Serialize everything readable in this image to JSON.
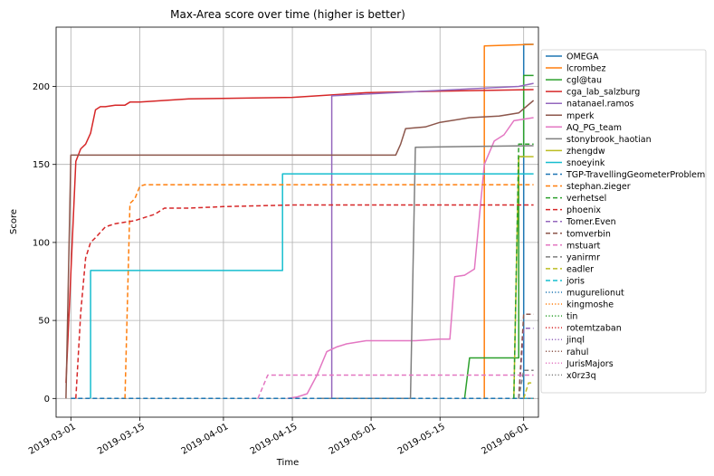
{
  "chart_data": {
    "type": "line",
    "title": "Max-Area score over time (higher is better)",
    "xlabel": "Time",
    "ylabel": "Score",
    "x_ticks": [
      "2019-03-01",
      "2019-03-15",
      "2019-04-01",
      "2019-04-15",
      "2019-05-01",
      "2019-05-15",
      "2019-06-01"
    ],
    "y_ticks": [
      "0",
      "50",
      "100",
      "150",
      "200"
    ],
    "xlim": [
      "2019-02-26",
      "2019-06-04"
    ],
    "ylim": [
      -12,
      238
    ],
    "grid": true,
    "legend_position": "right",
    "series": [
      {
        "name": "OMEGA",
        "color": "#1f77b4",
        "style": "solid",
        "x": [
          "2019-06-01",
          "2019-06-01",
          "2019-06-03"
        ],
        "y": [
          0,
          227,
          227
        ]
      },
      {
        "name": "lcrombez",
        "color": "#ff7f0e",
        "style": "solid",
        "x": [
          "2019-05-24",
          "2019-05-24",
          "2019-06-03"
        ],
        "y": [
          0,
          226,
          227
        ]
      },
      {
        "name": "cgl@tau",
        "color": "#2ca02c",
        "style": "solid",
        "x": [
          "2019-05-20",
          "2019-05-21",
          "2019-05-28",
          "2019-05-28",
          "2019-05-31",
          "2019-05-31",
          "2019-06-01",
          "2019-06-01",
          "2019-06-03"
        ],
        "y": [
          0,
          26,
          26,
          26,
          26,
          155,
          155,
          207,
          207
        ]
      },
      {
        "name": "cga_lab_salzburg",
        "color": "#d62728",
        "style": "solid",
        "x": [
          "2019-02-28",
          "2019-03-02",
          "2019-03-03",
          "2019-03-04",
          "2019-03-05",
          "2019-03-06",
          "2019-03-07",
          "2019-03-08",
          "2019-03-10",
          "2019-03-12",
          "2019-03-13",
          "2019-03-15",
          "2019-03-20",
          "2019-03-25",
          "2019-04-15",
          "2019-04-30",
          "2019-05-15",
          "2019-06-03"
        ],
        "y": [
          10,
          152,
          160,
          163,
          170,
          185,
          187,
          187,
          188,
          188,
          190,
          190,
          191,
          192,
          193,
          196,
          197,
          198
        ]
      },
      {
        "name": "natanael.ramos",
        "color": "#9467bd",
        "style": "solid",
        "x": [
          "2019-04-23",
          "2019-04-23",
          "2019-05-31",
          "2019-06-03"
        ],
        "y": [
          0,
          194,
          200,
          202
        ]
      },
      {
        "name": "mperk",
        "color": "#8c564b",
        "style": "solid",
        "x": [
          "2019-02-28",
          "2019-03-01",
          "2019-04-30",
          "2019-05-06",
          "2019-05-07",
          "2019-05-08",
          "2019-05-12",
          "2019-05-15",
          "2019-05-21",
          "2019-05-27",
          "2019-05-31",
          "2019-06-03"
        ],
        "y": [
          0,
          156,
          156,
          156,
          163,
          173,
          174,
          177,
          180,
          181,
          183,
          191
        ]
      },
      {
        "name": "AQ_PG_team",
        "color": "#e377c2",
        "style": "solid",
        "x": [
          "2019-04-14",
          "2019-04-16",
          "2019-04-18",
          "2019-04-20",
          "2019-04-22",
          "2019-04-24",
          "2019-04-26",
          "2019-04-30",
          "2019-05-05",
          "2019-05-10",
          "2019-05-15",
          "2019-05-17",
          "2019-05-18",
          "2019-05-20",
          "2019-05-22",
          "2019-05-24",
          "2019-05-26",
          "2019-05-28",
          "2019-05-30",
          "2019-06-03"
        ],
        "y": [
          0,
          1,
          3,
          15,
          30,
          33,
          35,
          37,
          37,
          37,
          38,
          38,
          78,
          79,
          83,
          150,
          165,
          169,
          178,
          180
        ]
      },
      {
        "name": "stonybrook_haotian",
        "color": "#7f7f7f",
        "style": "solid",
        "x": [
          "2019-04-20",
          "2019-05-09",
          "2019-05-10",
          "2019-06-03"
        ],
        "y": [
          0,
          0,
          161,
          162
        ]
      },
      {
        "name": "zhengdw",
        "color": "#bcbd22",
        "style": "solid",
        "x": [
          "2019-05-30",
          "2019-05-31",
          "2019-06-03"
        ],
        "y": [
          0,
          155,
          155
        ]
      },
      {
        "name": "snoeyink",
        "color": "#17becf",
        "style": "solid",
        "x": [
          "2019-03-05",
          "2019-03-05",
          "2019-04-13",
          "2019-04-13",
          "2019-06-03"
        ],
        "y": [
          0,
          82,
          82,
          144,
          144
        ]
      },
      {
        "name": "TGP-TravellingGeometerProblem",
        "color": "#1f77b4",
        "style": "dashed",
        "x": [
          "2019-03-01",
          "2019-06-03"
        ],
        "y": [
          0,
          0
        ]
      },
      {
        "name": "stephan.zieger",
        "color": "#ff7f0e",
        "style": "dashed",
        "x": [
          "2019-03-12",
          "2019-03-13",
          "2019-03-14",
          "2019-03-15",
          "2019-03-16",
          "2019-06-03"
        ],
        "y": [
          0,
          125,
          128,
          136,
          137,
          137
        ]
      },
      {
        "name": "verhetsel",
        "color": "#2ca02c",
        "style": "dashed",
        "x": [
          "2019-05-30",
          "2019-05-31",
          "2019-06-03"
        ],
        "y": [
          0,
          163,
          163
        ]
      },
      {
        "name": "phoenix",
        "color": "#d62728",
        "style": "dashed",
        "x": [
          "2019-03-02",
          "2019-03-03",
          "2019-03-04",
          "2019-03-05",
          "2019-03-06",
          "2019-03-08",
          "2019-03-10",
          "2019-03-12",
          "2019-03-14",
          "2019-03-16",
          "2019-03-18",
          "2019-03-20",
          "2019-03-25",
          "2019-04-01",
          "2019-04-15",
          "2019-06-03"
        ],
        "y": [
          0,
          55,
          90,
          100,
          103,
          110,
          112,
          113,
          114,
          116,
          118,
          122,
          122,
          123,
          124,
          124
        ]
      },
      {
        "name": "Tomer.Even",
        "color": "#9467bd",
        "style": "dashed",
        "x": [
          "2019-05-31",
          "2019-06-01",
          "2019-06-03"
        ],
        "y": [
          0,
          45,
          45
        ]
      },
      {
        "name": "tomverbin",
        "color": "#8c564b",
        "style": "dashed",
        "x": [
          "2019-05-31",
          "2019-06-01",
          "2019-06-03"
        ],
        "y": [
          0,
          54,
          54
        ]
      },
      {
        "name": "mstuart",
        "color": "#e377c2",
        "style": "dashed",
        "x": [
          "2019-04-08",
          "2019-04-10",
          "2019-06-03"
        ],
        "y": [
          0,
          15,
          15
        ]
      },
      {
        "name": "yanirmr",
        "color": "#7f7f7f",
        "style": "dashed",
        "x": [
          "2019-05-31",
          "2019-06-01",
          "2019-06-03"
        ],
        "y": [
          0,
          18,
          18
        ]
      },
      {
        "name": "eadler",
        "color": "#bcbd22",
        "style": "dashed",
        "x": [
          "2019-06-01",
          "2019-06-02",
          "2019-06-03"
        ],
        "y": [
          0,
          10,
          10
        ]
      },
      {
        "name": "joris",
        "color": "#17becf",
        "style": "dashed",
        "x": [
          "2019-06-01",
          "2019-06-03"
        ],
        "y": [
          0,
          0
        ]
      },
      {
        "name": "mugurelionut",
        "color": "#1f77b4",
        "style": "dotted",
        "x": [
          "2019-06-01",
          "2019-06-03"
        ],
        "y": [
          0,
          0
        ]
      },
      {
        "name": "kingmoshe",
        "color": "#ff7f0e",
        "style": "dotted",
        "x": [
          "2019-06-01",
          "2019-06-03"
        ],
        "y": [
          0,
          0
        ]
      },
      {
        "name": "tin",
        "color": "#2ca02c",
        "style": "dotted",
        "x": [
          "2019-06-01",
          "2019-06-03"
        ],
        "y": [
          0,
          0
        ]
      },
      {
        "name": "rotemtzaban",
        "color": "#d62728",
        "style": "dotted",
        "x": [
          "2019-06-01",
          "2019-06-03"
        ],
        "y": [
          0,
          0
        ]
      },
      {
        "name": "jinql",
        "color": "#9467bd",
        "style": "dotted",
        "x": [
          "2019-06-01",
          "2019-06-03"
        ],
        "y": [
          0,
          0
        ]
      },
      {
        "name": "rahul",
        "color": "#8c564b",
        "style": "dotted",
        "x": [
          "2019-06-01",
          "2019-06-03"
        ],
        "y": [
          0,
          0
        ]
      },
      {
        "name": "JurisMajors",
        "color": "#e377c2",
        "style": "dotted",
        "x": [
          "2019-06-01",
          "2019-06-03"
        ],
        "y": [
          0,
          0
        ]
      },
      {
        "name": "x0rz3q",
        "color": "#7f7f7f",
        "style": "dotted",
        "x": [
          "2019-06-01",
          "2019-06-03"
        ],
        "y": [
          0,
          0
        ]
      }
    ]
  }
}
